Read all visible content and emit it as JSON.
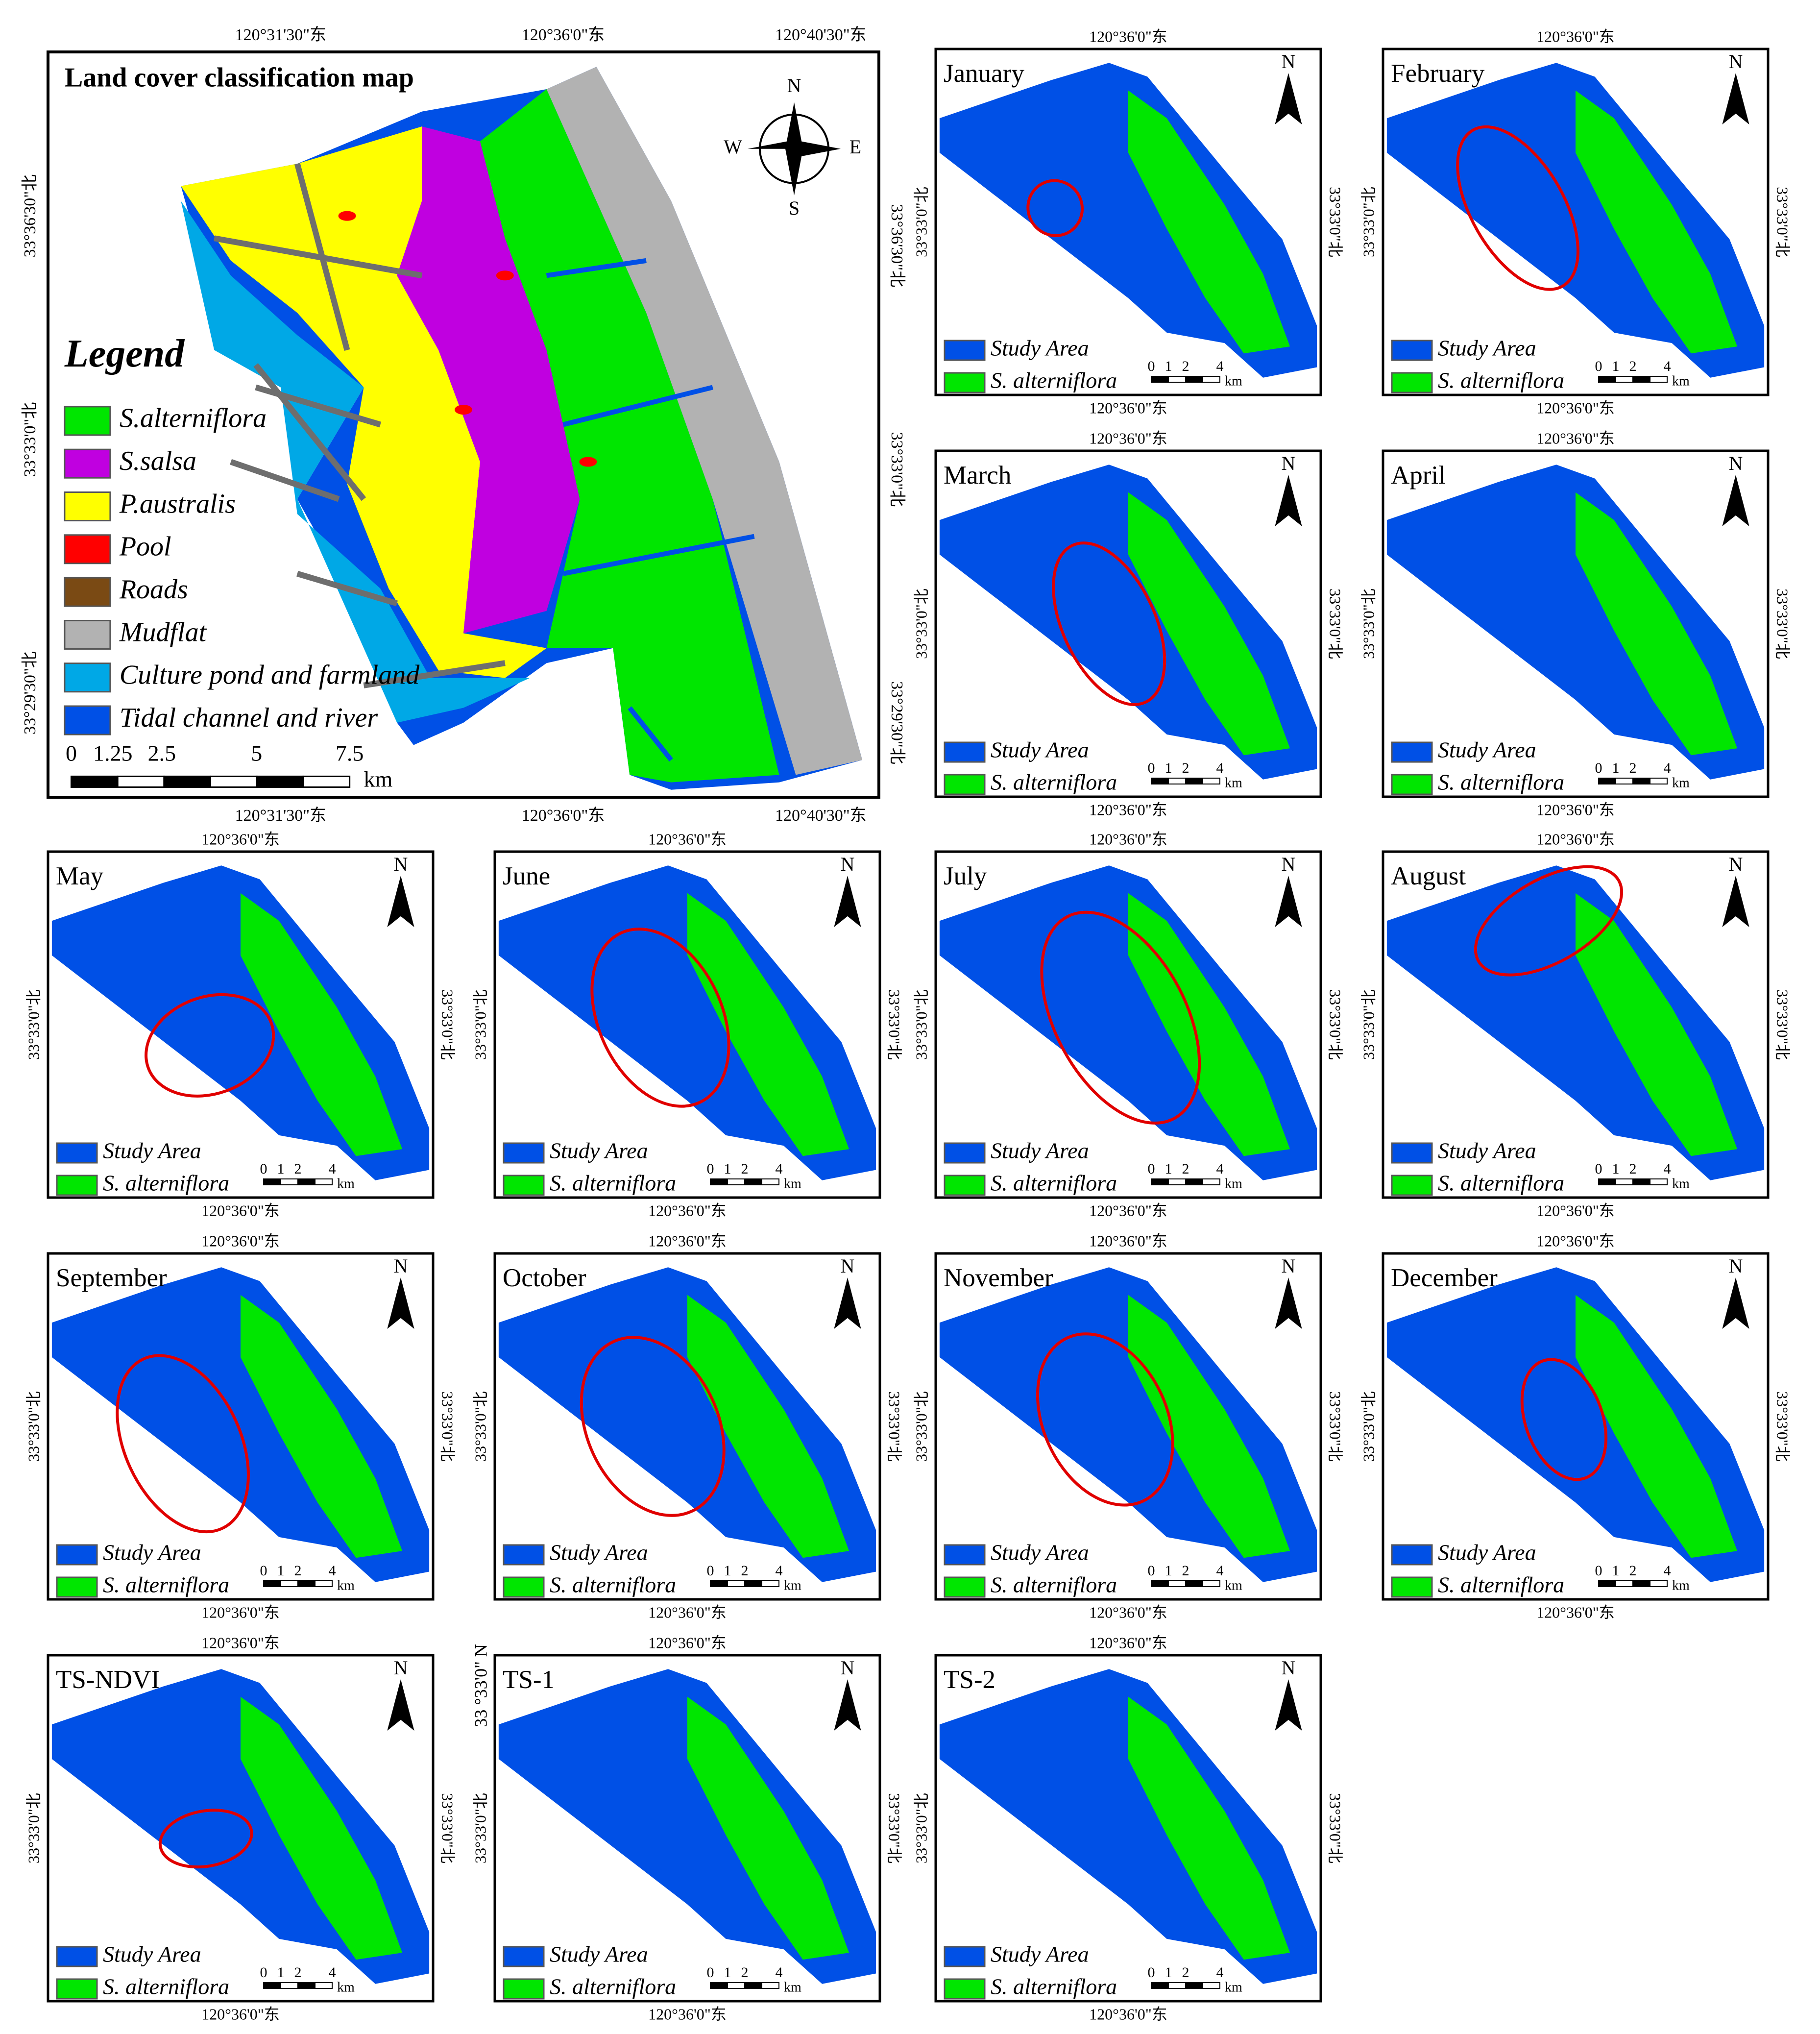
{
  "main_map": {
    "title": "Land cover classification map",
    "legend_title": "Legend",
    "legend": [
      {
        "label": "S.alterniflora",
        "color": "#00e600"
      },
      {
        "label": "S.salsa",
        "color": "#c000e0"
      },
      {
        "label": "P.australis",
        "color": "#ffff00"
      },
      {
        "label": "Pool",
        "color": "#ff0000"
      },
      {
        "label": "Roads",
        "color": "#7a4a14"
      },
      {
        "label": "Mudflat",
        "color": "#b2b2b2"
      },
      {
        "label": "Culture pond and farmland",
        "color": "#00a8e6"
      },
      {
        "label": "Tidal channel and river",
        "color": "#0050e6"
      }
    ],
    "scale_labels": [
      "0",
      "1.25",
      "2.5",
      "5",
      "7.5"
    ],
    "scale_unit": "km",
    "compass": [
      "N",
      "W",
      "E",
      "S"
    ],
    "top_coords": [
      "120°31'30\"东",
      "120°36'0\"东",
      "120°40'30\"东"
    ],
    "bottom_coords": [
      "120°31'30\"东",
      "120°36'0\"东",
      "120°40'30\"东"
    ],
    "left_coords": [
      "33°36'30\"北",
      "33°33'0\"北",
      "33°29'30\"北"
    ],
    "right_coords": [
      "33°36'30\"北",
      "33°33'0\"北",
      "33°29'30\"北"
    ]
  },
  "panel_legend": [
    {
      "label": "Study Area",
      "color": "#0050e6"
    },
    {
      "label": "S. alterniflora",
      "color": "#00e600"
    }
  ],
  "panel_scale_labels": [
    "0",
    "1",
    "2",
    "4"
  ],
  "panel_scale_unit": "km",
  "panel_north": "N",
  "panel_lon": "120°36'0\"东",
  "panel_lat": "33°33'0\"北",
  "panels": [
    "January",
    "February",
    "March",
    "April",
    "May",
    "June",
    "July",
    "August",
    "September",
    "October",
    "November",
    "December",
    "TS-NDVI",
    "TS-1",
    "TS-2"
  ],
  "side_label": "33 °33'0\" N"
}
